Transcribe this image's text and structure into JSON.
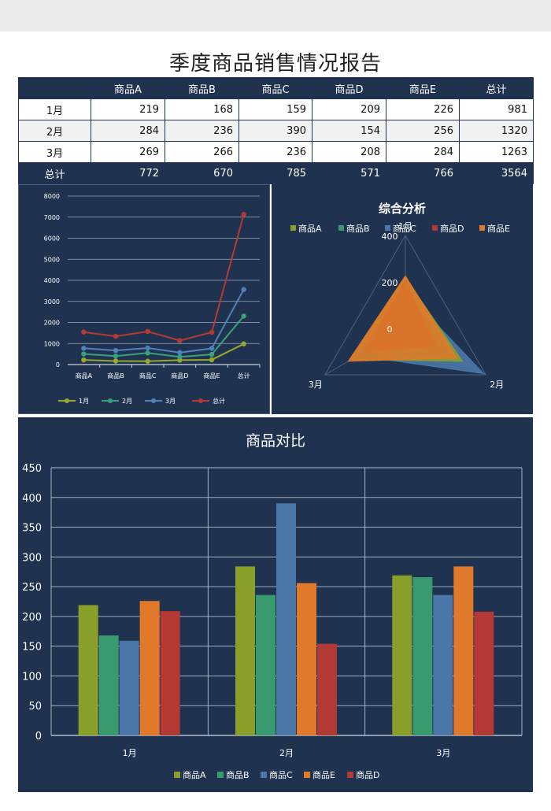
{
  "report_title": "季度商品销售情况报告",
  "table": {
    "header": [
      "",
      "商品A",
      "商品B",
      "商品C",
      "商品D",
      "商品E",
      "总计"
    ],
    "rows": [
      {
        "label": "1月",
        "values": [
          "219",
          "168",
          "159",
          "209",
          "226",
          "981"
        ]
      },
      {
        "label": "2月",
        "values": [
          "284",
          "236",
          "390",
          "154",
          "256",
          "1320"
        ]
      },
      {
        "label": "3月",
        "values": [
          "269",
          "266",
          "236",
          "208",
          "284",
          "1263"
        ]
      }
    ],
    "total": {
      "label": "总计",
      "values": [
        "772",
        "670",
        "785",
        "571",
        "766",
        "3564"
      ]
    }
  },
  "colors": {
    "panel_bg": "#1f3350",
    "olive": "#8a9e2a",
    "green": "#3a9a6f",
    "blue": "#4a77a8",
    "orange": "#e07a2a",
    "red": "#b33a34",
    "line_1": "#98a82c",
    "line_2": "#3aa078",
    "line_3": "#4f82bb",
    "line_total": "#b63a34"
  },
  "chart_data": [
    {
      "type": "line",
      "title": "",
      "categories": [
        "商品A",
        "商品B",
        "商品C",
        "商品D",
        "商品E",
        "总计"
      ],
      "ylim": [
        0,
        8000
      ],
      "yticks": [
        "0",
        "1000",
        "2000",
        "3000",
        "4000",
        "5000",
        "6000",
        "7000",
        "8000"
      ],
      "grid": true,
      "legend": "bottom",
      "series": [
        {
          "name": "1月",
          "values": [
            219,
            168,
            159,
            209,
            226,
            981
          ]
        },
        {
          "name": "2月",
          "values": [
            503,
            404,
            549,
            363,
            482,
            2301
          ]
        },
        {
          "name": "3月",
          "values": [
            772,
            670,
            785,
            571,
            766,
            3564
          ]
        },
        {
          "name": "总计",
          "values": [
            1544,
            1340,
            1570,
            1142,
            1532,
            7128
          ]
        }
      ]
    },
    {
      "type": "radar",
      "title": "综合分析",
      "axes": [
        "1月",
        "2月",
        "3月"
      ],
      "range": [
        0,
        400
      ],
      "ticks": [
        "0",
        "200",
        "400"
      ],
      "legend": "top",
      "series": [
        {
          "name": "商品A",
          "values": [
            219,
            284,
            269
          ]
        },
        {
          "name": "商品B",
          "values": [
            168,
            236,
            266
          ]
        },
        {
          "name": "商品C",
          "values": [
            159,
            390,
            236
          ]
        },
        {
          "name": "商品D",
          "values": [
            209,
            154,
            208
          ]
        },
        {
          "name": "商品E",
          "values": [
            226,
            256,
            284
          ]
        }
      ]
    },
    {
      "type": "bar",
      "title": "商品对比",
      "categories": [
        "1月",
        "2月",
        "3月"
      ],
      "ylim": [
        0,
        450
      ],
      "yticks": [
        "0",
        "50",
        "100",
        "150",
        "200",
        "250",
        "300",
        "350",
        "400",
        "450"
      ],
      "grid": true,
      "legend": "bottom",
      "series": [
        {
          "name": "商品A",
          "values": [
            219,
            284,
            269
          ]
        },
        {
          "name": "商品B",
          "values": [
            168,
            236,
            266
          ]
        },
        {
          "name": "商品C",
          "values": [
            159,
            390,
            236
          ]
        },
        {
          "name": "商品E",
          "values": [
            226,
            256,
            284
          ]
        },
        {
          "name": "商品D",
          "values": [
            209,
            154,
            208
          ]
        }
      ]
    }
  ]
}
